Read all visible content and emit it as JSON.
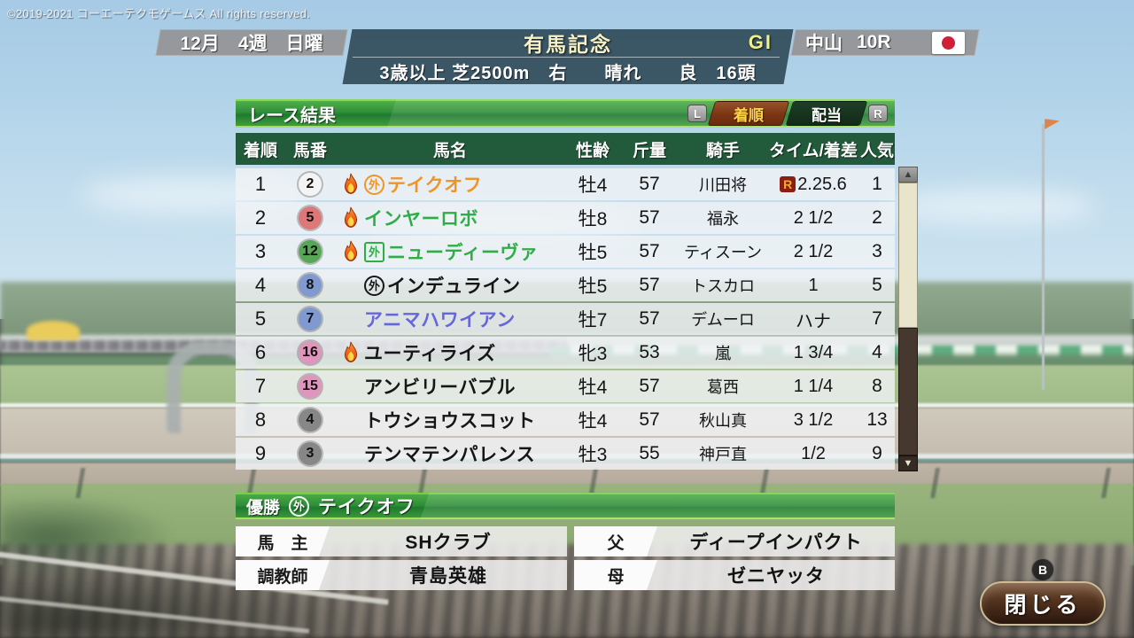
{
  "copyright": "©2019-2021 コーエーテクモゲームス All rights reserved.",
  "header": {
    "date": "12月　4週　日曜",
    "race_name": "有馬記念",
    "grade": "GI",
    "venue": "中山",
    "race_no": "10R",
    "flag_icon": "japan-flag",
    "conditions": "3歳以上 芝2500m　右　　晴れ　　良　16頭"
  },
  "results_panel": {
    "title": "レース結果",
    "left_bumper": "L",
    "right_bumper": "R",
    "tabs": [
      {
        "label": "着順",
        "active": true
      },
      {
        "label": "配当",
        "active": false
      }
    ],
    "columns": [
      "着順",
      "馬番",
      "馬名",
      "性齢",
      "斤量",
      "騎手",
      "タイム/着差",
      "人気"
    ],
    "record_badge": "R",
    "scrollbar": {
      "up_arrow": "▲",
      "down_arrow": "▼"
    },
    "rows": [
      {
        "pos": "1",
        "num": "2",
        "num_bg": "#f4f4f4",
        "fire": true,
        "marker": "外",
        "marker_shape": "circle",
        "name": "テイクオフ",
        "name_color": "#ef9426",
        "sex_age": "牡4",
        "weight": "57",
        "jockey": "川田将",
        "record": true,
        "time": "2.25.6",
        "pop": "1"
      },
      {
        "pos": "2",
        "num": "5",
        "num_bg": "#de7878",
        "fire": true,
        "marker": "",
        "marker_shape": "",
        "name": "インヤーロボ",
        "name_color": "#2fae47",
        "sex_age": "牡8",
        "weight": "57",
        "jockey": "福永",
        "record": false,
        "time": "2 1/2",
        "pop": "2"
      },
      {
        "pos": "3",
        "num": "12",
        "num_bg": "#57a757",
        "fire": true,
        "marker": "外",
        "marker_shape": "square",
        "name": "ニューディーヴァ",
        "name_color": "#2fae47",
        "sex_age": "牡5",
        "weight": "57",
        "jockey": "ティスーン",
        "record": false,
        "time": "2 1/2",
        "pop": "3"
      },
      {
        "pos": "4",
        "num": "8",
        "num_bg": "#8099d0",
        "fire": false,
        "marker": "外",
        "marker_shape": "circle",
        "name": "インデュライン",
        "name_color": "#161616",
        "sex_age": "牡5",
        "weight": "57",
        "jockey": "トスカロ",
        "record": false,
        "time": "1",
        "pop": "5"
      },
      {
        "pos": "5",
        "num": "7",
        "num_bg": "#8099d0",
        "fire": false,
        "marker": "",
        "marker_shape": "",
        "name": "アニマハワイアン",
        "name_color": "#6565dc",
        "sex_age": "牡7",
        "weight": "57",
        "jockey": "デムーロ",
        "record": false,
        "time": "ハナ",
        "pop": "7"
      },
      {
        "pos": "6",
        "num": "16",
        "num_bg": "#e095bd",
        "fire": true,
        "marker": "",
        "marker_shape": "",
        "name": "ユーティライズ",
        "name_color": "#161616",
        "sex_age": "牝3",
        "weight": "53",
        "jockey": "嵐",
        "record": false,
        "time": "1 3/4",
        "pop": "4"
      },
      {
        "pos": "7",
        "num": "15",
        "num_bg": "#e095bd",
        "fire": false,
        "marker": "",
        "marker_shape": "",
        "name": "アンビリーバブル",
        "name_color": "#161616",
        "sex_age": "牡4",
        "weight": "57",
        "jockey": "葛西",
        "record": false,
        "time": "1 1/4",
        "pop": "8"
      },
      {
        "pos": "8",
        "num": "4",
        "num_bg": "#878787",
        "fire": false,
        "marker": "",
        "marker_shape": "",
        "name": "トウショウスコット",
        "name_color": "#161616",
        "sex_age": "牡4",
        "weight": "57",
        "jockey": "秋山真",
        "record": false,
        "time": "3 1/2",
        "pop": "13"
      },
      {
        "pos": "9",
        "num": "3",
        "num_bg": "#878787",
        "fire": false,
        "marker": "",
        "marker_shape": "",
        "name": "テンマテンパレンス",
        "name_color": "#161616",
        "sex_age": "牡3",
        "weight": "55",
        "jockey": "神戸直",
        "record": false,
        "time": "1/2",
        "pop": "9"
      }
    ]
  },
  "winner_panel": {
    "title_label": "優勝",
    "marker": "外",
    "winner_name": "テイクオフ",
    "fields": [
      {
        "label": "馬　主",
        "value": "SHクラブ"
      },
      {
        "label": "父",
        "value": "ディープインパクト"
      },
      {
        "label": "調教師",
        "value": "青島英雄"
      },
      {
        "label": "母",
        "value": "ゼニヤッタ"
      }
    ]
  },
  "close_button": {
    "gamepad_hint": "B",
    "label": "閉じる"
  }
}
